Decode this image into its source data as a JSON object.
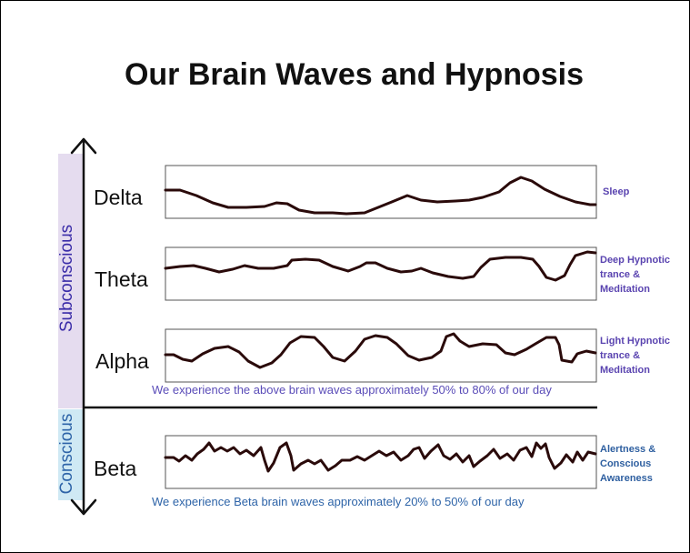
{
  "title": "Our Brain Waves and Hypnosis",
  "axis": {
    "subconscious_label": "Subconscious",
    "conscious_label": "Conscious"
  },
  "waves": [
    {
      "name": "Delta",
      "state": "Sleep"
    },
    {
      "name": "Theta",
      "state": "Deep Hypnotic trance & Meditation"
    },
    {
      "name": "Alpha",
      "state": "Light Hypnotic trance & Meditation"
    },
    {
      "name": "Beta",
      "state": "Alertness & Conscious Awareness"
    }
  ],
  "notes": {
    "subconscious": "We experience the above brain waves approximately 50% to 80% of our day",
    "conscious": "We experience Beta brain waves approximately 20% to 50% of our day"
  },
  "colors": {
    "subconscious_band": "#e5dcef",
    "conscious_band": "#cfe9f4",
    "subconscious_text": "#3a2ca8",
    "conscious_text": "#2e64a8",
    "state_text_purple": "#5a44b0",
    "state_text_blue": "#2e5fa0",
    "wave_line": "#2a0a0a"
  },
  "icons": [
    "double-headed-vertical-arrow-icon"
  ]
}
